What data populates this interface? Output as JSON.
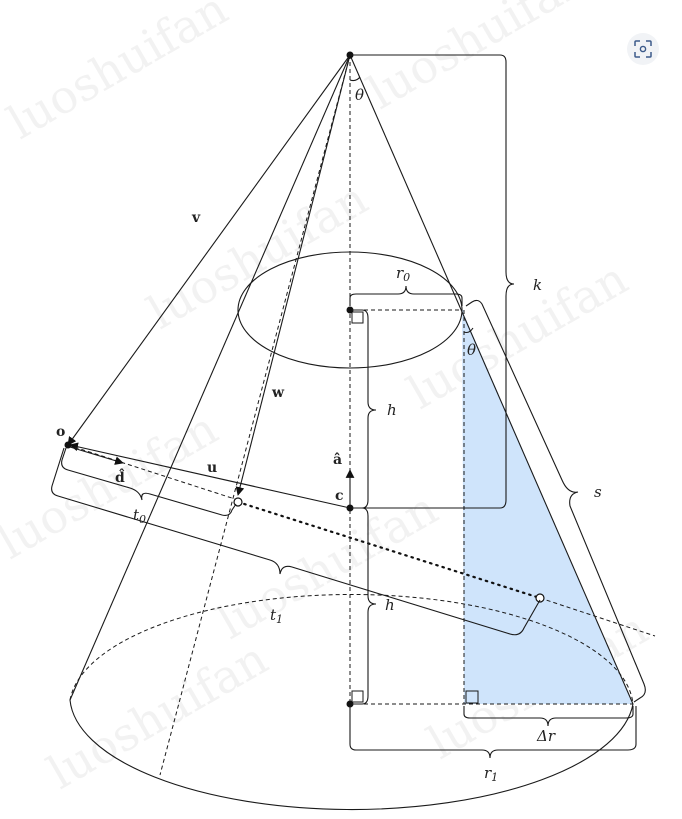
{
  "labels": {
    "theta_top": "θ",
    "theta_mid": "θ",
    "r0": "r",
    "r0_sub": "0",
    "k": "k",
    "h_upper": "h",
    "h_lower": "h",
    "s": "s",
    "v": "v",
    "w": "w",
    "o": "o",
    "u": "u",
    "d_hat": "d̂",
    "a_hat": "â",
    "c": "c",
    "t0": "t",
    "t0_sub": "0",
    "t1": "t",
    "t1_sub": "1",
    "delta_r": "Δr",
    "r1": "r",
    "r1_sub": "1"
  },
  "watermark": "luoshuifan",
  "colors": {
    "triangle_fill": "#cfe4fb",
    "ink": "#1a1a1a"
  },
  "icons": {
    "corner_button": "scan-icon"
  }
}
